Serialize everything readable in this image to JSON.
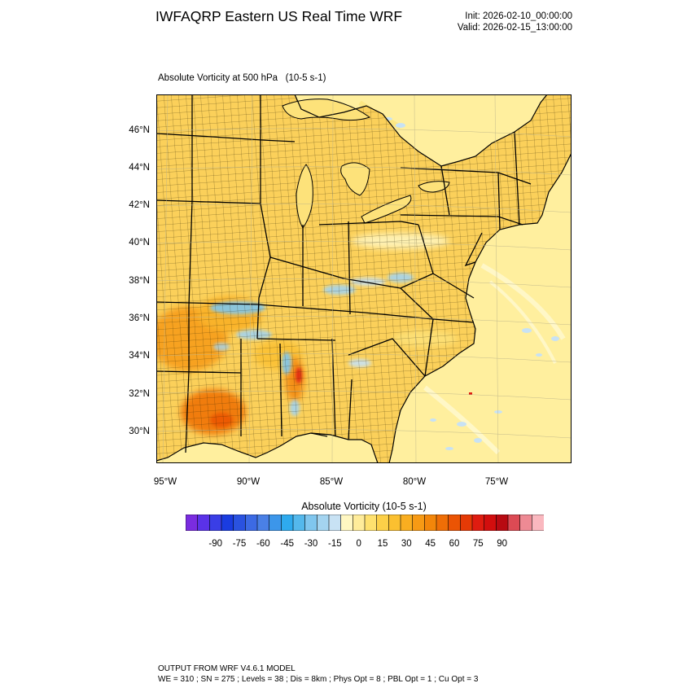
{
  "header": {
    "title": "IWFAQRP Eastern US Real Time WRF",
    "init": "Init: 2026-02-10_00:00:00",
    "valid": "Valid: 2026-02-15_13:00:00"
  },
  "field": {
    "title": "Absolute Vorticity at 500 hPa   (10-5 s-1)"
  },
  "map": {
    "projection": "lambert-conformal",
    "extent": {
      "lon_min": -95.5,
      "lon_max": -70.5,
      "lat_min": 28.5,
      "lat_max": 48.0
    },
    "lat_labels": [
      "46°N",
      "44°N",
      "42°N",
      "40°N",
      "38°N",
      "36°N",
      "34°N",
      "32°N",
      "30°N"
    ],
    "lat_values": [
      46,
      44,
      42,
      40,
      38,
      36,
      34,
      32,
      30
    ],
    "lon_labels": [
      "95°W",
      "90°W",
      "85°W",
      "80°W",
      "75°W"
    ],
    "lon_values": [
      -95,
      -90,
      -85,
      -80,
      -75
    ],
    "colors": {
      "land_base": "#fbd05a",
      "water_base": "#ffef9e",
      "boundary": "#000000",
      "great_lakes": "#fde27a"
    }
  },
  "colorbar": {
    "title": "Absolute Vorticity  (10-5 s-1)",
    "labels": [
      "-90",
      "-75",
      "-60",
      "-45",
      "-30",
      "-15",
      "0",
      "15",
      "30",
      "45",
      "60",
      "75",
      "90"
    ],
    "colors": [
      "#7a2ce0",
      "#5a32e8",
      "#3a3ee6",
      "#1a3ce0",
      "#2a52e0",
      "#3c6ae4",
      "#4a80e6",
      "#3c96ea",
      "#2eaaee",
      "#54b8ec",
      "#80c6ee",
      "#a4d4f0",
      "#c8e2f4",
      "#fff7c2",
      "#ffec9a",
      "#ffe16e",
      "#fdd048",
      "#fbc030",
      "#f9ae20",
      "#f79a14",
      "#f3860a",
      "#ef6e06",
      "#eb5404",
      "#e53a06",
      "#df1c10",
      "#d20e0e",
      "#b80a12",
      "#dc4a54",
      "#ee8a94",
      "#fab8bf"
    ]
  },
  "footer": {
    "line1": "OUTPUT FROM WRF V4.6.1 MODEL",
    "line2": "WE = 310 ; SN = 275 ; Levels = 38 ; Dis = 8km ; Phys Opt = 8 ; PBL Opt = 1 ; Cu Opt = 3"
  }
}
